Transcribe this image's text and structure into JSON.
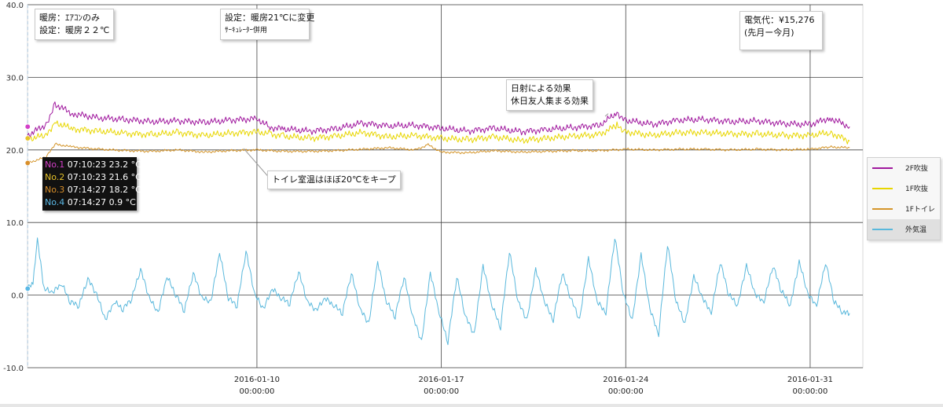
{
  "chart_data": {
    "type": "line",
    "ylim": [
      -10,
      40
    ],
    "y_ticks": [
      "40.0",
      "30.0",
      "20.0",
      "10.0",
      "0.0",
      "-10.0"
    ],
    "y_tick_values": [
      40,
      30,
      20,
      10,
      0,
      -10
    ],
    "x_range": [
      "2016-01-01 07:00",
      "2016-02-02 00:00"
    ],
    "x_ticks": [
      {
        "date": "2016-01-10",
        "time": "00:00:00",
        "value": "2016-01-10T00:00"
      },
      {
        "date": "2016-01-17",
        "time": "00:00:00",
        "value": "2016-01-17T00:00"
      },
      {
        "date": "2016-01-24",
        "time": "00:00:00",
        "value": "2016-01-24T00:00"
      },
      {
        "date": "2016-01-31",
        "time": "00:00:00",
        "value": "2016-01-31T00:00"
      }
    ],
    "grid": true,
    "legend_position": "right",
    "series": [
      {
        "name": "2F吹抜",
        "color": "#a0189e",
        "points": [
          [
            "2016-01-01T07:00",
            22.0
          ],
          [
            "2016-01-02T00:00",
            23.5
          ],
          [
            "2016-01-02T08:00",
            26.3
          ],
          [
            "2016-01-03T00:00",
            25.0
          ],
          [
            "2016-01-04T00:00",
            24.4
          ],
          [
            "2016-01-05T00:00",
            24.2
          ],
          [
            "2016-01-06T00:00",
            23.9
          ],
          [
            "2016-01-07T00:00",
            24.0
          ],
          [
            "2016-01-08T00:00",
            23.8
          ],
          [
            "2016-01-09T00:00",
            24.1
          ],
          [
            "2016-01-10T00:00",
            24.3
          ],
          [
            "2016-01-10T12:00",
            23.1
          ],
          [
            "2016-01-11T00:00",
            22.9
          ],
          [
            "2016-01-12T00:00",
            22.6
          ],
          [
            "2016-01-13T00:00",
            22.9
          ],
          [
            "2016-01-14T00:00",
            23.7
          ],
          [
            "2016-01-15T00:00",
            23.3
          ],
          [
            "2016-01-16T00:00",
            23.4
          ],
          [
            "2016-01-17T00:00",
            23.0
          ],
          [
            "2016-01-18T00:00",
            22.6
          ],
          [
            "2016-01-19T00:00",
            23.0
          ],
          [
            "2016-01-20T00:00",
            22.5
          ],
          [
            "2016-01-21T00:00",
            22.8
          ],
          [
            "2016-01-22T00:00",
            23.1
          ],
          [
            "2016-01-23T00:00",
            23.4
          ],
          [
            "2016-01-23T16:00",
            25.1
          ],
          [
            "2016-01-24T00:00",
            24.1
          ],
          [
            "2016-01-25T00:00",
            23.5
          ],
          [
            "2016-01-26T00:00",
            24.1
          ],
          [
            "2016-01-27T00:00",
            24.2
          ],
          [
            "2016-01-28T00:00",
            23.9
          ],
          [
            "2016-01-29T00:00",
            24.0
          ],
          [
            "2016-01-30T00:00",
            23.6
          ],
          [
            "2016-01-31T00:00",
            23.5
          ],
          [
            "2016-01-31T18:00",
            24.4
          ],
          [
            "2016-02-01T12:00",
            23.2
          ]
        ]
      },
      {
        "name": "1F吹抜",
        "color": "#e8d600",
        "points": [
          [
            "2016-01-01T07:00",
            21.5
          ],
          [
            "2016-01-02T00:00",
            22.0
          ],
          [
            "2016-01-02T08:00",
            23.8
          ],
          [
            "2016-01-03T00:00",
            22.9
          ],
          [
            "2016-01-04T00:00",
            22.6
          ],
          [
            "2016-01-05T00:00",
            22.3
          ],
          [
            "2016-01-06T00:00",
            22.1
          ],
          [
            "2016-01-07T00:00",
            22.4
          ],
          [
            "2016-01-08T00:00",
            22.0
          ],
          [
            "2016-01-09T00:00",
            22.3
          ],
          [
            "2016-01-10T00:00",
            22.5
          ],
          [
            "2016-01-10T12:00",
            22.2
          ],
          [
            "2016-01-11T00:00",
            21.9
          ],
          [
            "2016-01-12T00:00",
            21.6
          ],
          [
            "2016-01-13T00:00",
            21.9
          ],
          [
            "2016-01-14T00:00",
            22.4
          ],
          [
            "2016-01-15T00:00",
            21.8
          ],
          [
            "2016-01-16T00:00",
            22.0
          ],
          [
            "2016-01-17T00:00",
            21.6
          ],
          [
            "2016-01-18T00:00",
            21.4
          ],
          [
            "2016-01-19T00:00",
            21.8
          ],
          [
            "2016-01-20T00:00",
            21.3
          ],
          [
            "2016-01-21T00:00",
            21.6
          ],
          [
            "2016-01-22T00:00",
            21.9
          ],
          [
            "2016-01-23T00:00",
            22.1
          ],
          [
            "2016-01-23T16:00",
            23.4
          ],
          [
            "2016-01-24T00:00",
            22.5
          ],
          [
            "2016-01-25T00:00",
            22.0
          ],
          [
            "2016-01-26T00:00",
            22.4
          ],
          [
            "2016-01-27T00:00",
            22.4
          ],
          [
            "2016-01-28T00:00",
            22.2
          ],
          [
            "2016-01-29T00:00",
            22.2
          ],
          [
            "2016-01-30T00:00",
            22.0
          ],
          [
            "2016-01-31T00:00",
            22.0
          ],
          [
            "2016-01-31T18:00",
            22.4
          ],
          [
            "2016-02-01T12:00",
            21.2
          ]
        ]
      },
      {
        "name": "1Fトイレ",
        "color": "#d4952a",
        "points": [
          [
            "2016-01-01T07:00",
            18.2
          ],
          [
            "2016-01-02T00:00",
            19.0
          ],
          [
            "2016-01-02T08:00",
            20.8
          ],
          [
            "2016-01-03T00:00",
            20.4
          ],
          [
            "2016-01-04T00:00",
            20.1
          ],
          [
            "2016-01-05T00:00",
            19.9
          ],
          [
            "2016-01-06T00:00",
            19.8
          ],
          [
            "2016-01-07T00:00",
            20.0
          ],
          [
            "2016-01-08T00:00",
            19.7
          ],
          [
            "2016-01-09T00:00",
            19.9
          ],
          [
            "2016-01-10T00:00",
            20.0
          ],
          [
            "2016-01-11T00:00",
            19.8
          ],
          [
            "2016-01-12T00:00",
            19.8
          ],
          [
            "2016-01-13T00:00",
            19.9
          ],
          [
            "2016-01-14T00:00",
            20.1
          ],
          [
            "2016-01-15T00:00",
            20.3
          ],
          [
            "2016-01-16T00:00",
            20.0
          ],
          [
            "2016-01-16T12:00",
            20.7
          ],
          [
            "2016-01-17T00:00",
            19.7
          ],
          [
            "2016-01-18T00:00",
            19.6
          ],
          [
            "2016-01-19T00:00",
            19.9
          ],
          [
            "2016-01-20T00:00",
            19.7
          ],
          [
            "2016-01-21T00:00",
            19.8
          ],
          [
            "2016-01-22T00:00",
            19.9
          ],
          [
            "2016-01-23T00:00",
            19.9
          ],
          [
            "2016-01-24T00:00",
            20.1
          ],
          [
            "2016-01-25T00:00",
            20.0
          ],
          [
            "2016-01-26T00:00",
            20.1
          ],
          [
            "2016-01-27T00:00",
            20.1
          ],
          [
            "2016-01-28T00:00",
            20.0
          ],
          [
            "2016-01-29T00:00",
            20.1
          ],
          [
            "2016-01-30T00:00",
            20.0
          ],
          [
            "2016-01-31T00:00",
            20.1
          ],
          [
            "2016-01-31T18:00",
            20.4
          ],
          [
            "2016-02-01T12:00",
            20.3
          ]
        ]
      },
      {
        "name": "外気温",
        "color": "#5ab8dc",
        "points": [
          [
            "2016-01-01T07:00",
            0.9
          ],
          [
            "2016-01-01T12:00",
            1.5
          ],
          [
            "2016-01-01T16:00",
            7.6
          ],
          [
            "2016-01-01T22:00",
            0.8
          ],
          [
            "2016-01-02T06:00",
            0.3
          ],
          [
            "2016-01-02T14:00",
            1.5
          ],
          [
            "2016-01-02T22:00",
            -1.0
          ],
          [
            "2016-01-03T06:00",
            -1.5
          ],
          [
            "2016-01-03T14:00",
            2.2
          ],
          [
            "2016-01-03T22:00",
            0.0
          ],
          [
            "2016-01-04T06:00",
            -3.5
          ],
          [
            "2016-01-04T14:00",
            -1.0
          ],
          [
            "2016-01-04T22:00",
            -2.0
          ],
          [
            "2016-01-05T06:00",
            -0.5
          ],
          [
            "2016-01-05T14:00",
            3.5
          ],
          [
            "2016-01-05T22:00",
            -0.5
          ],
          [
            "2016-01-06T06:00",
            -2.5
          ],
          [
            "2016-01-06T14:00",
            2.5
          ],
          [
            "2016-01-06T22:00",
            0.0
          ],
          [
            "2016-01-07T06:00",
            -2.2
          ],
          [
            "2016-01-07T14:00",
            3.0
          ],
          [
            "2016-01-07T22:00",
            -0.5
          ],
          [
            "2016-01-08T06:00",
            -1.0
          ],
          [
            "2016-01-08T14:00",
            5.8
          ],
          [
            "2016-01-08T22:00",
            -0.5
          ],
          [
            "2016-01-09T06:00",
            -1.5
          ],
          [
            "2016-01-09T14:00",
            6.0
          ],
          [
            "2016-01-09T22:00",
            0.0
          ],
          [
            "2016-01-10T06:00",
            -2.0
          ],
          [
            "2016-01-10T14:00",
            0.8
          ],
          [
            "2016-01-10T22:00",
            -0.5
          ],
          [
            "2016-01-11T06:00",
            -1.2
          ],
          [
            "2016-01-11T14:00",
            3.2
          ],
          [
            "2016-01-11T22:00",
            -1.0
          ],
          [
            "2016-01-12T06:00",
            -2.2
          ],
          [
            "2016-01-12T14:00",
            -0.5
          ],
          [
            "2016-01-12T22:00",
            -1.5
          ],
          [
            "2016-01-13T06:00",
            -2.5
          ],
          [
            "2016-01-13T14:00",
            3.0
          ],
          [
            "2016-01-13T22:00",
            -2.0
          ],
          [
            "2016-01-14T06:00",
            -4.0
          ],
          [
            "2016-01-14T14:00",
            4.5
          ],
          [
            "2016-01-14T22:00",
            -1.0
          ],
          [
            "2016-01-15T06:00",
            -3.0
          ],
          [
            "2016-01-15T14:00",
            2.5
          ],
          [
            "2016-01-15T22:00",
            -3.0
          ],
          [
            "2016-01-16T06:00",
            -6.5
          ],
          [
            "2016-01-16T14:00",
            3.0
          ],
          [
            "2016-01-16T22:00",
            -2.5
          ],
          [
            "2016-01-17T06:00",
            -6.5
          ],
          [
            "2016-01-17T14:00",
            2.5
          ],
          [
            "2016-01-17T22:00",
            -3.0
          ],
          [
            "2016-01-18T06:00",
            -5.5
          ],
          [
            "2016-01-18T14:00",
            4.0
          ],
          [
            "2016-01-18T22:00",
            -1.5
          ],
          [
            "2016-01-19T06:00",
            -4.5
          ],
          [
            "2016-01-19T14:00",
            6.0
          ],
          [
            "2016-01-19T22:00",
            -1.0
          ],
          [
            "2016-01-20T06:00",
            -3.5
          ],
          [
            "2016-01-20T14:00",
            3.5
          ],
          [
            "2016-01-20T22:00",
            -1.0
          ],
          [
            "2016-01-21T06:00",
            -3.5
          ],
          [
            "2016-01-21T14:00",
            3.0
          ],
          [
            "2016-01-21T22:00",
            -0.5
          ],
          [
            "2016-01-22T06:00",
            -3.5
          ],
          [
            "2016-01-22T14:00",
            5.0
          ],
          [
            "2016-01-22T22:00",
            -1.0
          ],
          [
            "2016-01-23T06:00",
            -2.5
          ],
          [
            "2016-01-23T14:00",
            8.0
          ],
          [
            "2016-01-23T22:00",
            0.0
          ],
          [
            "2016-01-24T06:00",
            -3.5
          ],
          [
            "2016-01-24T14:00",
            5.5
          ],
          [
            "2016-01-24T22:00",
            -2.0
          ],
          [
            "2016-01-25T06:00",
            -5.5
          ],
          [
            "2016-01-25T14:00",
            7.0
          ],
          [
            "2016-01-25T22:00",
            -1.0
          ],
          [
            "2016-01-26T06:00",
            -4.0
          ],
          [
            "2016-01-26T14:00",
            2.5
          ],
          [
            "2016-01-26T22:00",
            -0.5
          ],
          [
            "2016-01-27T06:00",
            -2.5
          ],
          [
            "2016-01-27T14:00",
            4.5
          ],
          [
            "2016-01-27T22:00",
            0.0
          ],
          [
            "2016-01-28T06:00",
            -1.5
          ],
          [
            "2016-01-28T14:00",
            4.0
          ],
          [
            "2016-01-28T22:00",
            0.0
          ],
          [
            "2016-01-29T06:00",
            -1.0
          ],
          [
            "2016-01-29T14:00",
            4.0
          ],
          [
            "2016-01-29T22:00",
            0.5
          ],
          [
            "2016-01-30T06:00",
            -1.5
          ],
          [
            "2016-01-30T14:00",
            4.5
          ],
          [
            "2016-01-30T22:00",
            0.0
          ],
          [
            "2016-01-31T06:00",
            -1.5
          ],
          [
            "2016-01-31T14:00",
            4.5
          ],
          [
            "2016-01-31T22:00",
            -1.0
          ],
          [
            "2016-02-01T06:00",
            -2.5
          ],
          [
            "2016-02-01T12:00",
            -2.5
          ]
        ]
      }
    ],
    "legend": [
      "2F吹抜",
      "1F吹抜",
      "1Fトイレ",
      "外気温"
    ],
    "annotations": [
      {
        "lines": [
          "暖房：ｴｱｺﾝのみ",
          "設定：暖房２２℃"
        ]
      },
      {
        "lines": [
          "設定：暖房21℃に変更",
          "ｻｰｷｭﾚｰﾀｰ併用"
        ]
      },
      {
        "lines": [
          "電気代：¥15,276",
          "(先月ー今月)"
        ]
      },
      {
        "lines": [
          "日射による効果",
          "休日友人集まる効果"
        ]
      },
      {
        "lines": [
          "トイレ室温はほぼ20℃をキープ"
        ]
      }
    ],
    "cursor": {
      "time": "2016-01-01T07:10",
      "rows": [
        {
          "label": "No.1",
          "time": "07:10:23",
          "value": "23.2 °C",
          "color": "#d33fc8"
        },
        {
          "label": "No.2",
          "time": "07:10:23",
          "value": "21.6 °C",
          "color": "#e6c229"
        },
        {
          "label": "No.3",
          "time": "07:14:27",
          "value": "18.2 °C",
          "color": "#d98f2a"
        },
        {
          "label": "No.4",
          "time": "07:14:27",
          "value": "0.9 °C",
          "color": "#5ab8e6"
        }
      ]
    }
  }
}
